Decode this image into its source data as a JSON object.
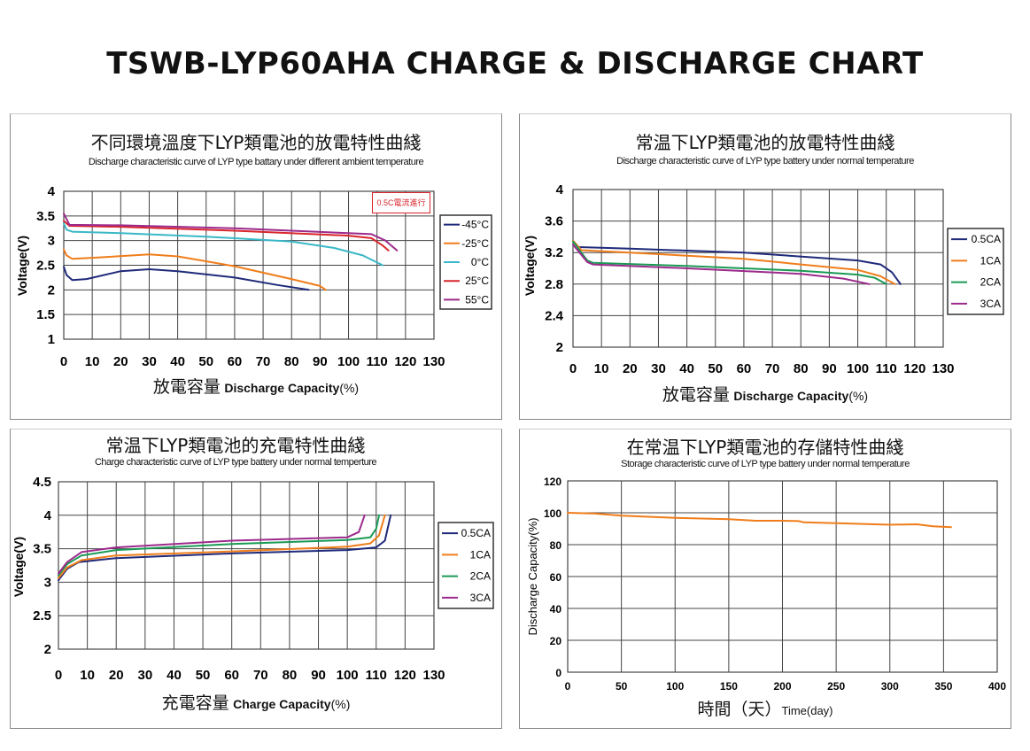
{
  "main_title": "TSWB-LYP60AHA CHARGE & DISCHARGE CHART",
  "chart_data": [
    {
      "type": "line",
      "title": "不同環境溫度下LYP類電池的放電特性曲綫",
      "subtitle": "Discharge characteristic curve of LYP type battary under different ambient temperature",
      "xlabel_cn": "放電容量",
      "xlabel_en": "Discharge Capacity",
      "xlabel_unit": "(%)",
      "ylabel": "Voltage(V)",
      "annotation": "0.5C電流進行",
      "xlim": [
        0,
        130
      ],
      "ylim": [
        1,
        4
      ],
      "xticks": [
        0,
        10,
        20,
        30,
        40,
        50,
        60,
        70,
        80,
        90,
        100,
        110,
        120,
        130
      ],
      "yticks": [
        1,
        1.5,
        2,
        2.5,
        3,
        3.5,
        4
      ],
      "grid": true,
      "legend": "right",
      "series": [
        {
          "name": "-45°C",
          "color": "#1f2a7a",
          "points": [
            [
              0,
              2.47
            ],
            [
              1,
              2.3
            ],
            [
              3,
              2.2
            ],
            [
              8,
              2.22
            ],
            [
              20,
              2.38
            ],
            [
              30,
              2.42
            ],
            [
              40,
              2.38
            ],
            [
              60,
              2.25
            ],
            [
              75,
              2.1
            ],
            [
              86,
              2.0
            ]
          ]
        },
        {
          "name": "-25°C",
          "color": "#f07d1a",
          "points": [
            [
              0,
              2.82
            ],
            [
              1,
              2.7
            ],
            [
              3,
              2.63
            ],
            [
              10,
              2.65
            ],
            [
              30,
              2.72
            ],
            [
              40,
              2.68
            ],
            [
              60,
              2.48
            ],
            [
              80,
              2.22
            ],
            [
              90,
              2.08
            ],
            [
              92,
              2.0
            ]
          ]
        },
        {
          "name": "0°C",
          "color": "#3ab8c8",
          "points": [
            [
              0,
              3.35
            ],
            [
              1,
              3.22
            ],
            [
              3,
              3.18
            ],
            [
              20,
              3.15
            ],
            [
              50,
              3.08
            ],
            [
              80,
              2.98
            ],
            [
              95,
              2.85
            ],
            [
              105,
              2.7
            ],
            [
              112,
              2.5
            ]
          ]
        },
        {
          "name": "25°C",
          "color": "#d9262c",
          "points": [
            [
              0,
              3.4
            ],
            [
              2,
              3.3
            ],
            [
              20,
              3.28
            ],
            [
              60,
              3.2
            ],
            [
              100,
              3.1
            ],
            [
              108,
              3.05
            ],
            [
              112,
              2.9
            ],
            [
              114,
              2.8
            ]
          ]
        },
        {
          "name": "55°C",
          "color": "#9c2a8c",
          "points": [
            [
              0,
              3.55
            ],
            [
              2,
              3.32
            ],
            [
              20,
              3.31
            ],
            [
              60,
              3.25
            ],
            [
              100,
              3.15
            ],
            [
              108,
              3.13
            ],
            [
              113,
              3.0
            ],
            [
              117,
              2.8
            ]
          ]
        }
      ]
    },
    {
      "type": "line",
      "title": "常温下LYP類電池的放電特性曲綫",
      "subtitle": "Discharge characteristic curve of LYP  type battery under normal temperature",
      "xlabel_cn": "放電容量",
      "xlabel_en": "Discharge Capacity",
      "xlabel_unit": "(%)",
      "ylabel": "Voltage(V)",
      "xlim": [
        0,
        130
      ],
      "ylim": [
        2,
        4
      ],
      "xticks": [
        0,
        10,
        20,
        30,
        40,
        50,
        60,
        70,
        80,
        90,
        100,
        110,
        120,
        130
      ],
      "yticks": [
        2,
        2.4,
        2.8,
        3.2,
        3.6,
        4
      ],
      "grid": true,
      "legend": "right",
      "series": [
        {
          "name": "0.5CA",
          "color": "#1f2a7a",
          "points": [
            [
              0,
              3.35
            ],
            [
              2,
              3.27
            ],
            [
              20,
              3.25
            ],
            [
              60,
              3.2
            ],
            [
              100,
              3.1
            ],
            [
              108,
              3.05
            ],
            [
              112,
              2.95
            ],
            [
              115,
              2.8
            ]
          ]
        },
        {
          "name": "1CA",
          "color": "#f07d1a",
          "points": [
            [
              0,
              3.35
            ],
            [
              3,
              3.23
            ],
            [
              20,
              3.2
            ],
            [
              60,
              3.12
            ],
            [
              100,
              2.98
            ],
            [
              108,
              2.9
            ],
            [
              113,
              2.8
            ]
          ]
        },
        {
          "name": "2CA",
          "color": "#1a9a55",
          "points": [
            [
              0,
              3.34
            ],
            [
              5,
              3.1
            ],
            [
              7,
              3.07
            ],
            [
              40,
              3.03
            ],
            [
              80,
              2.97
            ],
            [
              100,
              2.92
            ],
            [
              106,
              2.88
            ],
            [
              110,
              2.8
            ]
          ]
        },
        {
          "name": "3CA",
          "color": "#9c2a8c",
          "points": [
            [
              0,
              3.3
            ],
            [
              5,
              3.08
            ],
            [
              7,
              3.05
            ],
            [
              40,
              3.0
            ],
            [
              80,
              2.93
            ],
            [
              95,
              2.87
            ],
            [
              104,
              2.8
            ]
          ]
        }
      ]
    },
    {
      "type": "line",
      "title": "常温下LYP類電池的充電特性曲綫",
      "subtitle": "Charge characteristic curve of LYP type battery under normal temperture",
      "xlabel_cn": "充電容量",
      "xlabel_en": "Charge Capacity",
      "xlabel_unit": "(%)",
      "ylabel": "Voltage(V)",
      "xlim": [
        0,
        130
      ],
      "ylim": [
        2,
        4.5
      ],
      "xticks": [
        0,
        10,
        20,
        30,
        40,
        50,
        60,
        70,
        80,
        90,
        100,
        110,
        120,
        130
      ],
      "yticks": [
        2,
        2.5,
        3,
        3.5,
        4,
        4.5
      ],
      "grid": true,
      "legend": "right",
      "series": [
        {
          "name": "0.5CA",
          "color": "#1f2a7a",
          "points": [
            [
              0,
              3.03
            ],
            [
              3,
              3.2
            ],
            [
              7,
              3.3
            ],
            [
              20,
              3.36
            ],
            [
              60,
              3.43
            ],
            [
              100,
              3.48
            ],
            [
              110,
              3.52
            ],
            [
              113,
              3.62
            ],
            [
              115,
              4.0
            ]
          ]
        },
        {
          "name": "1CA",
          "color": "#f07d1a",
          "points": [
            [
              0,
              3.06
            ],
            [
              3,
              3.22
            ],
            [
              8,
              3.33
            ],
            [
              20,
              3.4
            ],
            [
              60,
              3.46
            ],
            [
              100,
              3.53
            ],
            [
              108,
              3.58
            ],
            [
              111,
              3.7
            ],
            [
              113,
              4.0
            ]
          ]
        },
        {
          "name": "2CA",
          "color": "#1a9a55",
          "points": [
            [
              0,
              3.1
            ],
            [
              3,
              3.27
            ],
            [
              8,
              3.4
            ],
            [
              20,
              3.48
            ],
            [
              60,
              3.57
            ],
            [
              100,
              3.63
            ],
            [
              108,
              3.67
            ],
            [
              110,
              3.8
            ],
            [
              111,
              4.0
            ]
          ]
        },
        {
          "name": "3CA",
          "color": "#9c2a8c",
          "points": [
            [
              0,
              3.13
            ],
            [
              3,
              3.3
            ],
            [
              8,
              3.45
            ],
            [
              20,
              3.52
            ],
            [
              60,
              3.62
            ],
            [
              100,
              3.67
            ],
            [
              104,
              3.75
            ],
            [
              106,
              4.0
            ]
          ]
        }
      ]
    },
    {
      "type": "line",
      "title": "在常温下LYP類電池的存儲特性曲綫",
      "subtitle": "Storage characteristic curve of LYP type battery under normal temperature",
      "xlabel_cn": "時間（天）",
      "xlabel_en": "Time(day)",
      "xlabel_unit": "",
      "ylabel": "Discharge Capacity(%)",
      "xlim": [
        0,
        400
      ],
      "ylim": [
        0,
        120
      ],
      "xticks": [
        0,
        50,
        100,
        150,
        200,
        250,
        300,
        350,
        400
      ],
      "yticks": [
        0,
        20,
        40,
        60,
        80,
        100,
        120
      ],
      "grid": true,
      "legend": "none",
      "series": [
        {
          "color": "#f07d1a",
          "points": [
            [
              0,
              100
            ],
            [
              25,
              99.5
            ],
            [
              50,
              98.2
            ],
            [
              100,
              96.8
            ],
            [
              150,
              96
            ],
            [
              175,
              95
            ],
            [
              200,
              95
            ],
            [
              215,
              94.8
            ],
            [
              220,
              94
            ],
            [
              250,
              93.5
            ],
            [
              275,
              93
            ],
            [
              300,
              92.5
            ],
            [
              325,
              92.8
            ],
            [
              340,
              91.5
            ],
            [
              357,
              91
            ]
          ]
        }
      ]
    }
  ]
}
